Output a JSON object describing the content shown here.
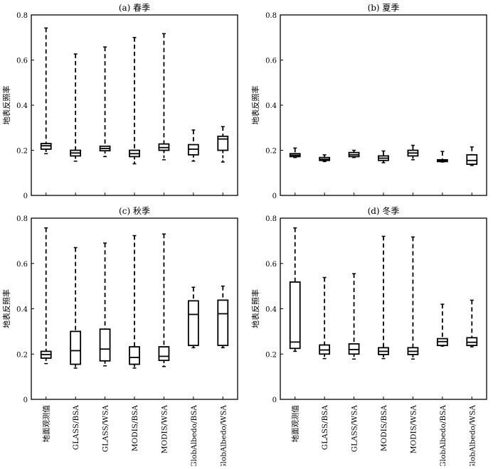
{
  "ylabel": "地表反照率",
  "x_categories": [
    "地面观测值",
    "GLASS/BSA",
    "GLASS/WSA",
    "MODIS/BSA",
    "MODIS/WSA",
    "GlobAlbedo/BSA",
    "GlobAlbedo/WSA"
  ],
  "y_ticks": [
    "0",
    "0.2",
    "0.4",
    "0.6",
    "0.8"
  ],
  "chart_data": [
    {
      "type": "box",
      "title": "(a) 春季",
      "ylabel": "地表反照率",
      "ylim": [
        0,
        0.8
      ],
      "categories": [
        "地面观测值",
        "GLASS/BSA",
        "GLASS/WSA",
        "MODIS/BSA",
        "MODIS/WSA",
        "GlobAlbedo/BSA",
        "GlobAlbedo/WSA"
      ],
      "boxes": [
        {
          "min": 0.185,
          "q1": 0.205,
          "median": 0.22,
          "q3": 0.23,
          "max": 0.742
        },
        {
          "min": 0.152,
          "q1": 0.175,
          "median": 0.188,
          "q3": 0.2,
          "max": 0.627
        },
        {
          "min": 0.172,
          "q1": 0.198,
          "median": 0.208,
          "q3": 0.218,
          "max": 0.658
        },
        {
          "min": 0.14,
          "q1": 0.172,
          "median": 0.185,
          "q3": 0.2,
          "max": 0.7
        },
        {
          "min": 0.158,
          "q1": 0.2,
          "median": 0.212,
          "q3": 0.228,
          "max": 0.717
        },
        {
          "min": 0.152,
          "q1": 0.18,
          "median": 0.205,
          "q3": 0.225,
          "max": 0.29
        },
        {
          "min": 0.148,
          "q1": 0.2,
          "median": 0.25,
          "q3": 0.262,
          "max": 0.305
        }
      ]
    },
    {
      "type": "box",
      "title": "(b) 夏季",
      "ylabel": "地表反照率",
      "ylim": [
        0,
        0.8
      ],
      "categories": [
        "地面观测值",
        "GLASS/BSA",
        "GLASS/WSA",
        "MODIS/BSA",
        "MODIS/WSA",
        "GlobAlbedo/BSA",
        "GlobAlbedo/WSA"
      ],
      "boxes": [
        {
          "min": 0.168,
          "q1": 0.172,
          "median": 0.178,
          "q3": 0.185,
          "max": 0.21
        },
        {
          "min": 0.15,
          "q1": 0.155,
          "median": 0.16,
          "q3": 0.168,
          "max": 0.18
        },
        {
          "min": 0.168,
          "q1": 0.172,
          "median": 0.18,
          "q3": 0.19,
          "max": 0.2
        },
        {
          "min": 0.145,
          "q1": 0.155,
          "median": 0.165,
          "q3": 0.175,
          "max": 0.197
        },
        {
          "min": 0.158,
          "q1": 0.175,
          "median": 0.188,
          "q3": 0.2,
          "max": 0.222
        },
        {
          "min": 0.148,
          "q1": 0.15,
          "median": 0.153,
          "q3": 0.158,
          "max": 0.195
        },
        {
          "min": 0.133,
          "q1": 0.138,
          "median": 0.155,
          "q3": 0.18,
          "max": 0.215
        }
      ]
    },
    {
      "type": "box",
      "title": "(c) 秋季",
      "ylabel": "地表反照率",
      "ylim": [
        0,
        0.8
      ],
      "categories": [
        "地面观测值",
        "GLASS/BSA",
        "GLASS/WSA",
        "MODIS/BSA",
        "MODIS/WSA",
        "GlobAlbedo/BSA",
        "GlobAlbedo/WSA"
      ],
      "boxes": [
        {
          "min": 0.158,
          "q1": 0.182,
          "median": 0.198,
          "q3": 0.212,
          "max": 0.757
        },
        {
          "min": 0.138,
          "q1": 0.155,
          "median": 0.215,
          "q3": 0.3,
          "max": 0.67
        },
        {
          "min": 0.148,
          "q1": 0.17,
          "median": 0.222,
          "q3": 0.31,
          "max": 0.69
        },
        {
          "min": 0.138,
          "q1": 0.155,
          "median": 0.185,
          "q3": 0.232,
          "max": 0.723
        },
        {
          "min": 0.145,
          "q1": 0.172,
          "median": 0.19,
          "q3": 0.232,
          "max": 0.73
        },
        {
          "min": 0.228,
          "q1": 0.238,
          "median": 0.375,
          "q3": 0.435,
          "max": 0.495
        },
        {
          "min": 0.228,
          "q1": 0.238,
          "median": 0.378,
          "q3": 0.438,
          "max": 0.5
        }
      ]
    },
    {
      "type": "box",
      "title": "(d) 冬季",
      "ylabel": "地表反照率",
      "ylim": [
        0,
        0.8
      ],
      "categories": [
        "地面观测值",
        "GLASS/BSA",
        "GLASS/WSA",
        "MODIS/BSA",
        "MODIS/WSA",
        "GlobAlbedo/BSA",
        "GlobAlbedo/WSA"
      ],
      "boxes": [
        {
          "min": 0.212,
          "q1": 0.225,
          "median": 0.253,
          "q3": 0.518,
          "max": 0.757
        },
        {
          "min": 0.18,
          "q1": 0.2,
          "median": 0.218,
          "q3": 0.24,
          "max": 0.538
        },
        {
          "min": 0.178,
          "q1": 0.2,
          "median": 0.22,
          "q3": 0.245,
          "max": 0.555
        },
        {
          "min": 0.18,
          "q1": 0.198,
          "median": 0.212,
          "q3": 0.228,
          "max": 0.72
        },
        {
          "min": 0.178,
          "q1": 0.198,
          "median": 0.212,
          "q3": 0.228,
          "max": 0.717
        },
        {
          "min": 0.235,
          "q1": 0.238,
          "median": 0.255,
          "q3": 0.268,
          "max": 0.42
        },
        {
          "min": 0.232,
          "q1": 0.238,
          "median": 0.252,
          "q3": 0.272,
          "max": 0.438
        }
      ]
    }
  ]
}
